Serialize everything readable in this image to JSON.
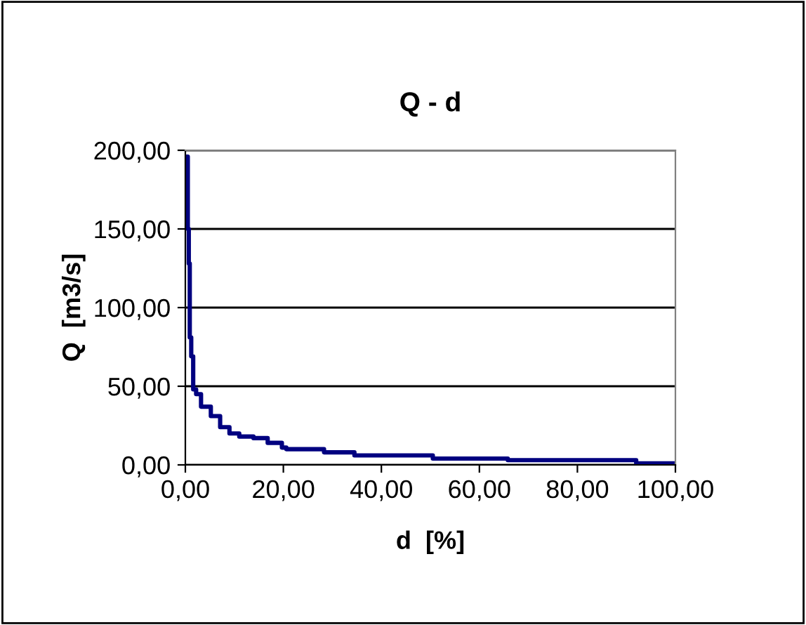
{
  "chart_data": {
    "type": "step",
    "title": "Q - d",
    "xlabel": "d  [%]",
    "ylabel": "Q  [m3/s]",
    "x": [
      0.4,
      0.5,
      0.7,
      0.9,
      1.2,
      1.6,
      2.2,
      3.2,
      5.2,
      7.1,
      9,
      11,
      13.9,
      16.8,
      19.7,
      20.6,
      27.8,
      28.3,
      34.5,
      50.5,
      65.8,
      92,
      100
    ],
    "series": [
      {
        "color": "#000080",
        "values": [
          196,
          150,
          128,
          81,
          69,
          48,
          45,
          37,
          31,
          24,
          20,
          18,
          17,
          14,
          11,
          10,
          10,
          8,
          6,
          4,
          3,
          1,
          1
        ]
      }
    ],
    "xlim": [
      0,
      100
    ],
    "ylim": [
      0,
      200
    ],
    "xticks": [
      {
        "value": 0,
        "label": "0,00"
      },
      {
        "value": 20,
        "label": "20,00"
      },
      {
        "value": 40,
        "label": "40,00"
      },
      {
        "value": 60,
        "label": "60,00"
      },
      {
        "value": 80,
        "label": "80,00"
      },
      {
        "value": 100,
        "label": "100,00"
      }
    ],
    "yticks": [
      {
        "value": 0,
        "label": "0,00"
      },
      {
        "value": 50,
        "label": "50,00"
      },
      {
        "value": 100,
        "label": "100,00"
      },
      {
        "value": 150,
        "label": "150,00"
      },
      {
        "value": 200,
        "label": "200,00"
      }
    ],
    "grid": "y",
    "line_style": "solid",
    "marker": "none"
  }
}
